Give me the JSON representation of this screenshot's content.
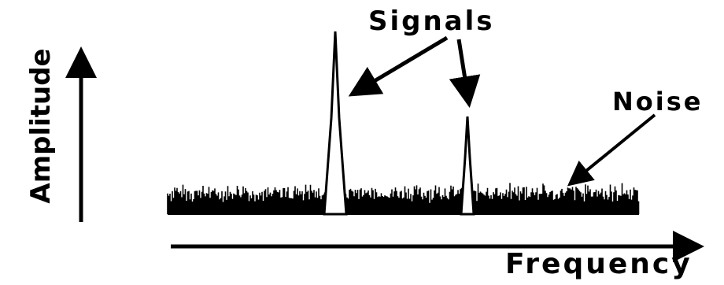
{
  "labels": {
    "signals": "Signals",
    "noise": "Noise",
    "frequency": "Frequency",
    "amplitude": "Amplitude"
  },
  "colors": {
    "ink": "#000000",
    "background": "#ffffff"
  }
}
